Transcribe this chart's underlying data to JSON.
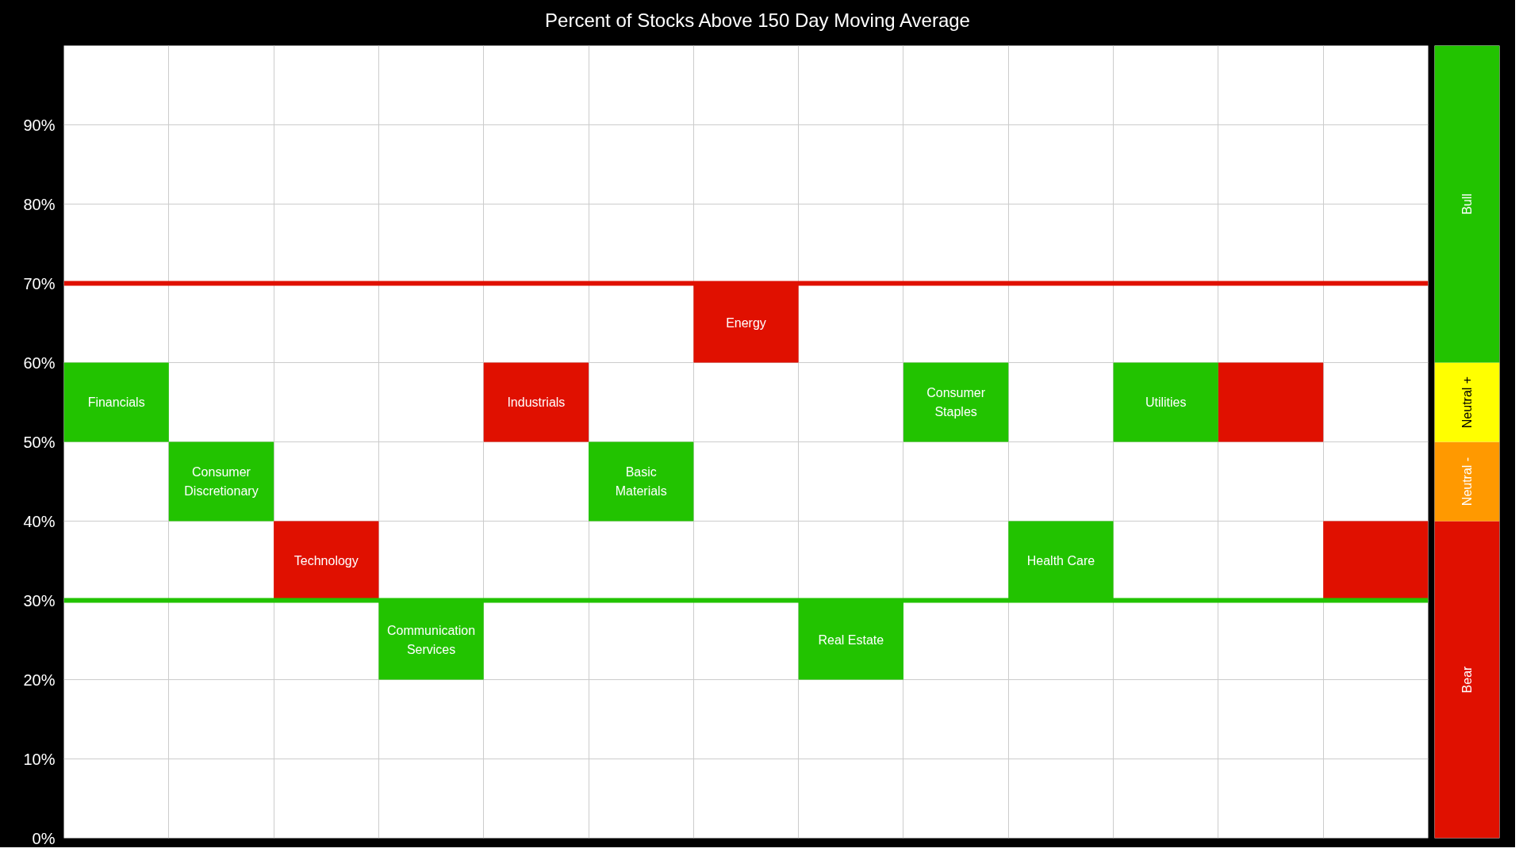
{
  "chart_data": [
    {
      "type": "bar",
      "title": "Percent of Stocks Above 150 Day Moving Average",
      "categories": [
        "Financials",
        "Consumer Discretionary",
        "Technology",
        "Communication Services",
        "Industrials",
        "Basic Materials",
        "Energy",
        "Real Estate",
        "Consumer Staples",
        "Health Care",
        "Utilities",
        null,
        null
      ],
      "base": [
        50,
        40,
        30,
        20,
        50,
        40,
        60,
        20,
        50,
        30,
        50,
        50,
        30
      ],
      "values": [
        10,
        10,
        10,
        10,
        10,
        10,
        10,
        10,
        10,
        10,
        10,
        10,
        10
      ],
      "colors": [
        "#22c300",
        "#22c300",
        "#e01000",
        "#22c300",
        "#e01000",
        "#22c300",
        "#e01000",
        "#22c300",
        "#22c300",
        "#22c300",
        "#22c300",
        "#e01000",
        "#e01000"
      ],
      "ylim": [
        0,
        100
      ],
      "yticks": [
        {
          "value": 0,
          "label": "0%"
        },
        {
          "value": 10,
          "label": "10%"
        },
        {
          "value": 20,
          "label": "20%"
        },
        {
          "value": 30,
          "label": "30%"
        },
        {
          "value": 40,
          "label": "40%"
        },
        {
          "value": 50,
          "label": "50%"
        },
        {
          "value": 60,
          "label": "60%"
        },
        {
          "value": 70,
          "label": "70%"
        },
        {
          "value": 80,
          "label": "80%"
        },
        {
          "value": 90,
          "label": "90%"
        }
      ],
      "ref_lines": [
        {
          "axis": "y",
          "value": 70,
          "label": null,
          "color": "#e01000"
        },
        {
          "axis": "y",
          "value": 30,
          "label": null,
          "color": "#22c300"
        }
      ],
      "grid": true,
      "tick_labels": "y"
    },
    {
      "type": "bar",
      "stacked": true,
      "categories": [
        null
      ],
      "ylim": [
        0,
        100
      ],
      "tick_labels": false,
      "series": [
        {
          "name": "Bear",
          "color": "#e01000",
          "values": [
            40
          ]
        },
        {
          "name": "Neutral -",
          "color": "#ff9900",
          "values": [
            10
          ]
        },
        {
          "name": "Neutral +",
          "color": "#ffff00",
          "values": [
            10
          ]
        },
        {
          "name": "Bull",
          "color": "#22c300",
          "values": [
            40
          ]
        }
      ]
    }
  ]
}
